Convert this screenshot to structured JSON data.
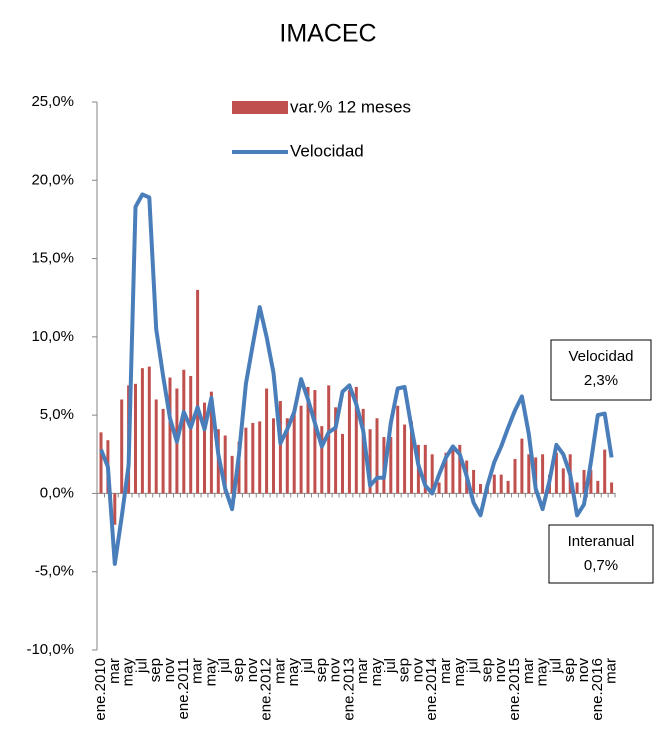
{
  "chart_data": {
    "type": "bar",
    "title": "IMACEC",
    "categories": [
      "ene.2010",
      null,
      "mar",
      null,
      "may",
      null,
      "jul",
      null,
      "sep",
      null,
      "nov",
      null,
      "ene.2011",
      null,
      "mar",
      null,
      "may",
      null,
      "jul",
      null,
      "sep",
      null,
      "nov",
      null,
      "ene.2012",
      null,
      "mar",
      null,
      "may",
      null,
      "jul",
      null,
      "sep",
      null,
      "nov",
      null,
      "ene.2013",
      null,
      "mar",
      null,
      "may",
      null,
      "jul",
      null,
      "sep",
      null,
      "nov",
      null,
      "ene.2014",
      null,
      "mar",
      null,
      "may",
      null,
      "jul",
      null,
      "sep",
      null,
      "nov",
      null,
      "ene.2015",
      null,
      "mar",
      null,
      "may",
      null,
      "jul",
      null,
      "sep",
      null,
      "nov",
      null,
      "ene.2016",
      null,
      "mar"
    ],
    "series": [
      {
        "name": "var.% 12 meses",
        "type": "bar",
        "color": "#c0504d",
        "values": [
          3.9,
          3.4,
          -2.0,
          6.0,
          6.9,
          7.0,
          8.0,
          8.1,
          6.0,
          5.4,
          7.4,
          6.7,
          7.9,
          7.5,
          13.0,
          5.8,
          6.5,
          4.1,
          3.7,
          2.4,
          3.3,
          4.2,
          4.5,
          4.6,
          6.7,
          4.8,
          5.9,
          4.8,
          5.2,
          5.6,
          6.8,
          6.6,
          4.3,
          6.9,
          5.5,
          3.8,
          6.6,
          6.8,
          5.4,
          4.1,
          4.8,
          3.6,
          3.6,
          5.6,
          4.4,
          4.6,
          3.1,
          3.1,
          2.5,
          0.7,
          2.6,
          3.0,
          3.1,
          2.1,
          1.5,
          0.6,
          0.3,
          1.2,
          1.2,
          0.8,
          2.2,
          3.5,
          2.5,
          2.3,
          2.5,
          1.2,
          2.6,
          1.6,
          2.5,
          0.7,
          1.5,
          1.5,
          0.8,
          2.8,
          0.7
        ]
      },
      {
        "name": "Velocidad",
        "type": "line",
        "color": "#4a7ebb",
        "values": [
          2.8,
          1.7,
          -4.5,
          -1.5,
          1.8,
          18.3,
          19.1,
          18.9,
          10.5,
          7.5,
          4.8,
          3.3,
          5.2,
          4.2,
          5.5,
          4.1,
          6.1,
          2.5,
          0.3,
          -1.0,
          2.5,
          7.0,
          9.5,
          11.9,
          10.0,
          7.7,
          3.2,
          4.1,
          5.2,
          7.3,
          6.0,
          4.5,
          3.0,
          3.9,
          4.2,
          6.5,
          6.9,
          5.7,
          4.0,
          0.5,
          1.0,
          1.0,
          4.5,
          6.7,
          6.8,
          4.2,
          1.8,
          0.5,
          0.0,
          1.2,
          2.3,
          3.0,
          2.5,
          1.1,
          -0.6,
          -1.4,
          0.5,
          2.0,
          3.0,
          4.2,
          5.3,
          6.2,
          3.8,
          0.3,
          -1.0,
          0.8,
          3.1,
          2.5,
          1.2,
          -1.4,
          -0.7,
          2.0,
          5.0,
          5.1,
          2.3
        ]
      }
    ],
    "ylim": [
      -10,
      25
    ],
    "yticks": [
      {
        "value": -10,
        "label": "-10,0%"
      },
      {
        "value": -5,
        "label": "-5,0%"
      },
      {
        "value": 0,
        "label": "0,0%"
      },
      {
        "value": 5,
        "label": "5,0%"
      },
      {
        "value": 10,
        "label": "10,0%"
      },
      {
        "value": 15,
        "label": "15,0%"
      },
      {
        "value": 20,
        "label": "20,0%"
      },
      {
        "value": 25,
        "label": "25,0%"
      }
    ],
    "annotations": [
      {
        "lines": [
          "Velocidad",
          "2,3%"
        ]
      },
      {
        "lines": [
          "Interanual",
          "0,7%"
        ]
      }
    ]
  }
}
